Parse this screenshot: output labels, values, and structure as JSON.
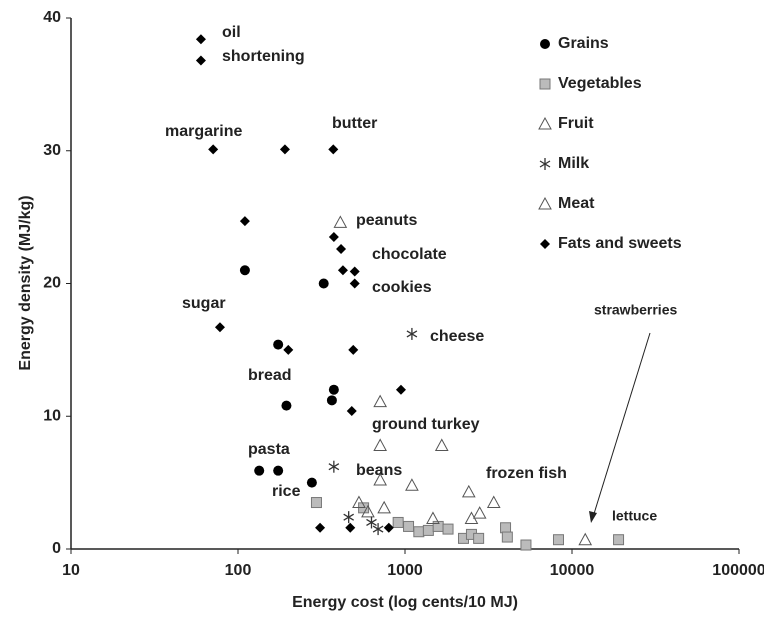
{
  "chart_data": {
    "type": "scatter",
    "x_label": "Energy cost (log cents/10 MJ)",
    "y_label": "Energy density (MJ/kg)",
    "x_scale": "log",
    "xlim": [
      10,
      100000
    ],
    "xticks": [
      10,
      100,
      1000,
      10000,
      100000
    ],
    "ylim": [
      0,
      40
    ],
    "yticks": [
      0,
      10,
      20,
      30,
      40
    ],
    "grid": false,
    "legend": "top-right",
    "series": [
      {
        "name": "Grains",
        "marker": "circle",
        "color": "#000000",
        "x": [
          110,
          326,
          174,
          375,
          365,
          195,
          134,
          174,
          277
        ],
        "values": [
          21,
          20,
          15.4,
          12,
          11.2,
          10.8,
          5.9,
          5.9,
          5
        ]
      },
      {
        "name": "Vegetables",
        "marker": "square",
        "color": "#bbbbbb",
        "x": [
          295,
          565,
          910,
          1050,
          1210,
          1380,
          1580,
          1810,
          2240,
          2500,
          2760,
          4000,
          4100,
          5300,
          8300,
          19000
        ],
        "values": [
          3.5,
          3.1,
          2,
          1.7,
          1.3,
          1.4,
          1.7,
          1.5,
          0.8,
          1.1,
          0.8,
          1.6,
          0.9,
          0.3,
          0.7,
          0.7
        ]
      },
      {
        "name": "Fruit",
        "marker": "triangle",
        "color": "#555555",
        "x": [
          530,
          600,
          710,
          750,
          1100,
          1470,
          2410,
          2500,
          2800,
          3400,
          12000
        ],
        "values": [
          3.5,
          2.8,
          5.2,
          3.1,
          4.8,
          2.3,
          4.3,
          2.3,
          2.7,
          3.5,
          0.7
        ]
      },
      {
        "name": "Milk",
        "marker": "asterisk",
        "color": "#333333",
        "x": [
          1100,
          375,
          460,
          630,
          690
        ],
        "values": [
          16.2,
          6.2,
          2.4,
          2,
          1.5
        ]
      },
      {
        "name": "Meat",
        "marker": "triangle",
        "color": "#555555",
        "x": [
          410,
          710,
          710,
          1660
        ],
        "values": [
          24.6,
          11.1,
          7.8,
          7.8
        ]
      },
      {
        "name": "Fats and sweets",
        "marker": "diamond",
        "color": "#000000",
        "x": [
          60,
          60,
          71,
          191,
          372,
          110,
          375,
          414,
          425,
          500,
          500,
          78,
          200,
          490,
          946,
          480,
          310,
          470,
          800
        ],
        "values": [
          38.4,
          36.8,
          30.1,
          30.1,
          30.1,
          24.7,
          23.5,
          22.6,
          21,
          20.9,
          20,
          16.7,
          15,
          15,
          12,
          10.4,
          1.6,
          1.6,
          1.6
        ]
      }
    ],
    "annotations": [
      "oil",
      "shortening",
      "margarine",
      "butter",
      "peanuts",
      "chocolate",
      "cookies",
      "sugar",
      "cheese",
      "bread",
      "ground turkey",
      "pasta",
      "beans",
      "rice",
      "frozen fish",
      "strawberries",
      "lettuce"
    ]
  }
}
